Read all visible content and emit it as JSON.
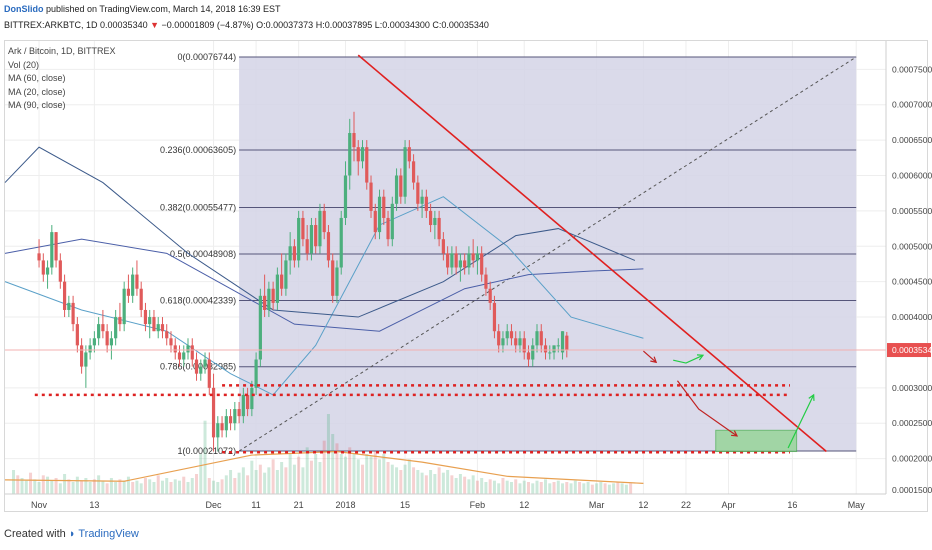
{
  "header": {
    "author": "DonSlido",
    "publish_text": "published on TradingView.com, March 14, 2018 16:39 EST"
  },
  "symbol_line": {
    "symbol": "BITTREX:ARKBTC, 1D",
    "last": "0.00035340",
    "change": "−0.00001809 (−4.87%)",
    "open": "O:0.00037373",
    "high": "H:0.00037895",
    "low": "L:0.00034300",
    "close": "C:0.00035340",
    "accent_down": "#d33333"
  },
  "legend": {
    "title": "Ark / Bitcoin, 1D, BITTREX",
    "items": [
      "Vol (20)",
      "MA (60, close)",
      "MA (20, close)",
      "MA (90, close)"
    ]
  },
  "chart_data": {
    "type": "candlestick",
    "title": "Ark / Bitcoin, 1D, BITTREX",
    "price_ticks": [
      0.00075,
      0.0007,
      0.00065,
      0.0006,
      0.00055,
      0.0005,
      0.00045,
      0.0004,
      0.0003,
      0.00025,
      0.0002
    ],
    "price_tick_labels": [
      "0.00075000",
      "0.00070000",
      "0.00065000",
      "0.00060000",
      "0.00055000",
      "0.00050000",
      "0.00045000",
      "0.00040000",
      "0.00030000",
      "0.00025000",
      "0.00020000"
    ],
    "bottom_tick_label": "0.00015000",
    "ylim": [
      0.00015,
      0.00079
    ],
    "last_price": 0.0003534,
    "last_price_label": "0.00035340",
    "x_tick_labels": [
      "Nov",
      "13",
      "Dec",
      "11",
      "21",
      "2018",
      "15",
      "Feb",
      "12",
      "Mar",
      "12",
      "22",
      "Apr",
      "16",
      "May"
    ],
    "x_tick_days": [
      0,
      13,
      41,
      51,
      61,
      72,
      86,
      103,
      114,
      131,
      142,
      152,
      162,
      177,
      192
    ],
    "x_range_days": [
      -8,
      199
    ],
    "fib_levels": [
      {
        "label": "0(0.00076744)",
        "value": 0.00076744
      },
      {
        "label": "0.236(0.00063605)",
        "value": 0.00063605
      },
      {
        "label": "0.382(0.00055477)",
        "value": 0.00055477
      },
      {
        "label": "0.5(0.00048908)",
        "value": 0.00048908
      },
      {
        "label": "0.618(0.00042339)",
        "value": 0.00042339
      },
      {
        "label": "0.786(0.00032985)",
        "value": 0.00032985
      },
      {
        "label": "1(0.00021072)",
        "value": 0.00021072
      }
    ],
    "fib_range_days": [
      47,
      192
    ],
    "trendline": {
      "from": [
        75,
        0.00077
      ],
      "to": [
        185,
        0.00021
      ]
    },
    "support_levels": [
      0.00029,
      0.0003035,
      0.00020898
    ],
    "target_box": {
      "days": [
        159,
        178
      ],
      "prices": [
        0.00024,
        0.00021
      ]
    },
    "candles_days_start": 0,
    "candles": [
      [
        0.00049,
        0.00051,
        0.00047,
        0.00048
      ],
      [
        0.00048,
        0.00049,
        0.00045,
        0.00046
      ],
      [
        0.00046,
        0.00048,
        0.00044,
        0.00047
      ],
      [
        0.00047,
        0.00053,
        0.00046,
        0.00052
      ],
      [
        0.00052,
        0.00052,
        0.00047,
        0.00048
      ],
      [
        0.00048,
        0.00049,
        0.00044,
        0.00045
      ],
      [
        0.00045,
        0.00046,
        0.0004,
        0.00041
      ],
      [
        0.00041,
        0.00043,
        0.0004,
        0.00042
      ],
      [
        0.00042,
        0.00043,
        0.00038,
        0.00039
      ],
      [
        0.00039,
        0.0004,
        0.00035,
        0.00036
      ],
      [
        0.00036,
        0.00037,
        0.00032,
        0.00033
      ],
      [
        0.00033,
        0.00036,
        0.0003,
        0.00035
      ],
      [
        0.00035,
        0.00037,
        0.00034,
        0.00036
      ],
      [
        0.00036,
        0.00038,
        0.00035,
        0.00037
      ],
      [
        0.00037,
        0.0004,
        0.00036,
        0.00039
      ],
      [
        0.00039,
        0.00041,
        0.00037,
        0.00038
      ],
      [
        0.00038,
        0.00039,
        0.00035,
        0.00036
      ],
      [
        0.00036,
        0.00038,
        0.00034,
        0.00037
      ],
      [
        0.00037,
        0.00041,
        0.00036,
        0.0004
      ],
      [
        0.0004,
        0.00042,
        0.00038,
        0.00039
      ],
      [
        0.00039,
        0.00045,
        0.00038,
        0.00044
      ],
      [
        0.00044,
        0.00046,
        0.00042,
        0.00043
      ],
      [
        0.00043,
        0.00047,
        0.00042,
        0.00046
      ],
      [
        0.00046,
        0.00048,
        0.00043,
        0.00044
      ],
      [
        0.00044,
        0.00045,
        0.0004,
        0.00041
      ],
      [
        0.00041,
        0.00042,
        0.00038,
        0.00039
      ],
      [
        0.00039,
        0.00041,
        0.00037,
        0.0004
      ],
      [
        0.0004,
        0.00041,
        0.00038,
        0.00038
      ],
      [
        0.00038,
        0.0004,
        0.00037,
        0.00039
      ],
      [
        0.00039,
        0.0004,
        0.00037,
        0.00038
      ],
      [
        0.00038,
        0.00039,
        0.00036,
        0.00037
      ],
      [
        0.00037,
        0.00038,
        0.00035,
        0.00036
      ],
      [
        0.00036,
        0.00037,
        0.00034,
        0.00035
      ],
      [
        0.00035,
        0.00036,
        0.00033,
        0.00034
      ],
      [
        0.00034,
        0.00036,
        0.00033,
        0.00035
      ],
      [
        0.00035,
        0.00037,
        0.00034,
        0.00036
      ],
      [
        0.00036,
        0.00037,
        0.00033,
        0.00034
      ],
      [
        0.00034,
        0.00035,
        0.00031,
        0.00032
      ],
      [
        0.00032,
        0.00034,
        0.00031,
        0.00033
      ],
      [
        0.00033,
        0.00035,
        0.00032,
        0.00034
      ],
      [
        0.00034,
        0.00035,
        0.00029,
        0.0003
      ],
      [
        0.0003,
        0.00032,
        0.00021,
        0.00023
      ],
      [
        0.00023,
        0.00026,
        0.00021,
        0.00025
      ],
      [
        0.00025,
        0.00026,
        0.00023,
        0.00024
      ],
      [
        0.00024,
        0.00027,
        0.00023,
        0.00026
      ],
      [
        0.00026,
        0.00027,
        0.00024,
        0.00025
      ],
      [
        0.00025,
        0.00028,
        0.00024,
        0.00027
      ],
      [
        0.00027,
        0.00028,
        0.00025,
        0.00026
      ],
      [
        0.00026,
        0.0003,
        0.00025,
        0.00029
      ],
      [
        0.00029,
        0.0003,
        0.00026,
        0.00027
      ],
      [
        0.00027,
        0.00031,
        0.00026,
        0.0003
      ],
      [
        0.0003,
        0.00035,
        0.00029,
        0.00034
      ],
      [
        0.00034,
        0.00044,
        0.00033,
        0.00043
      ],
      [
        0.00043,
        0.00046,
        0.0004,
        0.00041
      ],
      [
        0.00041,
        0.00045,
        0.0004,
        0.00044
      ],
      [
        0.00044,
        0.00045,
        0.00041,
        0.00042
      ],
      [
        0.00042,
        0.00047,
        0.00041,
        0.00046
      ],
      [
        0.00046,
        0.00049,
        0.00043,
        0.00044
      ],
      [
        0.00044,
        0.00049,
        0.00043,
        0.00048
      ],
      [
        0.00048,
        0.00052,
        0.00046,
        0.0005
      ],
      [
        0.0005,
        0.00051,
        0.00047,
        0.00048
      ],
      [
        0.00048,
        0.00055,
        0.00047,
        0.00054
      ],
      [
        0.00054,
        0.00055,
        0.0005,
        0.00051
      ],
      [
        0.00051,
        0.00053,
        0.00048,
        0.00049
      ],
      [
        0.00049,
        0.00054,
        0.00048,
        0.00053
      ],
      [
        0.00053,
        0.00054,
        0.00049,
        0.0005
      ],
      [
        0.0005,
        0.00056,
        0.00049,
        0.00055
      ],
      [
        0.00055,
        0.00056,
        0.00051,
        0.00052
      ],
      [
        0.00052,
        0.00053,
        0.00047,
        0.00048
      ],
      [
        0.00048,
        0.00049,
        0.00042,
        0.00043
      ],
      [
        0.00043,
        0.00048,
        0.00042,
        0.00047
      ],
      [
        0.00047,
        0.00055,
        0.00046,
        0.00054
      ],
      [
        0.00054,
        0.00062,
        0.00053,
        0.0006
      ],
      [
        0.0006,
        0.00068,
        0.00058,
        0.00066
      ],
      [
        0.00066,
        0.00069,
        0.00062,
        0.00064
      ],
      [
        0.00064,
        0.00065,
        0.0006,
        0.00062
      ],
      [
        0.00062,
        0.00065,
        0.00061,
        0.00064
      ],
      [
        0.00064,
        0.00065,
        0.00058,
        0.00059
      ],
      [
        0.00059,
        0.0006,
        0.00054,
        0.00055
      ],
      [
        0.00055,
        0.00056,
        0.00051,
        0.00052
      ],
      [
        0.00052,
        0.00058,
        0.00051,
        0.00057
      ],
      [
        0.00057,
        0.00058,
        0.00053,
        0.00054
      ],
      [
        0.00054,
        0.00055,
        0.0005,
        0.00051
      ],
      [
        0.00051,
        0.00057,
        0.0005,
        0.00056
      ],
      [
        0.00056,
        0.00061,
        0.00055,
        0.0006
      ],
      [
        0.0006,
        0.00061,
        0.00056,
        0.00057
      ],
      [
        0.00057,
        0.00065,
        0.00056,
        0.00064
      ],
      [
        0.00064,
        0.00065,
        0.00061,
        0.00062
      ],
      [
        0.00062,
        0.00063,
        0.00058,
        0.00059
      ],
      [
        0.00059,
        0.0006,
        0.00055,
        0.00056
      ],
      [
        0.00056,
        0.00058,
        0.00054,
        0.00057
      ],
      [
        0.00057,
        0.00058,
        0.00054,
        0.00055
      ],
      [
        0.00055,
        0.00056,
        0.00052,
        0.00053
      ],
      [
        0.00053,
        0.00055,
        0.00051,
        0.00054
      ],
      [
        0.00054,
        0.00055,
        0.0005,
        0.00051
      ],
      [
        0.00051,
        0.00052,
        0.00048,
        0.00049
      ],
      [
        0.00049,
        0.0005,
        0.00046,
        0.00047
      ],
      [
        0.00047,
        0.0005,
        0.00046,
        0.00049
      ],
      [
        0.00049,
        0.0005,
        0.00046,
        0.00047
      ],
      [
        0.00047,
        0.00049,
        0.00045,
        0.00048
      ],
      [
        0.00048,
        0.00049,
        0.00046,
        0.00047
      ],
      [
        0.00047,
        0.0005,
        0.00046,
        0.00049
      ],
      [
        0.00049,
        0.00051,
        0.00047,
        0.00048
      ],
      [
        0.00048,
        0.0005,
        0.00046,
        0.00049
      ],
      [
        0.00049,
        0.0005,
        0.00045,
        0.00046
      ],
      [
        0.00046,
        0.00047,
        0.00043,
        0.00044
      ],
      [
        0.00044,
        0.00045,
        0.00041,
        0.00042
      ],
      [
        0.00042,
        0.00043,
        0.00037,
        0.00038
      ],
      [
        0.00038,
        0.00039,
        0.00035,
        0.00036
      ],
      [
        0.00036,
        0.00038,
        0.00035,
        0.00037
      ],
      [
        0.00037,
        0.00039,
        0.00036,
        0.00038
      ],
      [
        0.00038,
        0.00039,
        0.00036,
        0.00037
      ],
      [
        0.00037,
        0.00038,
        0.00035,
        0.00036
      ],
      [
        0.00036,
        0.00038,
        0.00035,
        0.00037
      ],
      [
        0.00037,
        0.00038,
        0.00034,
        0.00035
      ],
      [
        0.00035,
        0.00036,
        0.00033,
        0.00034
      ],
      [
        0.00034,
        0.00037,
        0.00033,
        0.00036
      ],
      [
        0.00036,
        0.00039,
        0.00035,
        0.00038
      ],
      [
        0.00038,
        0.00039,
        0.00035,
        0.00036
      ],
      [
        0.00036,
        0.00037,
        0.00034,
        0.00035
      ],
      [
        0.00035,
        0.00036,
        0.00034,
        0.00035
      ],
      [
        0.00035,
        0.00036,
        0.00034,
        0.00036
      ],
      [
        0.00036,
        0.00037,
        0.00035,
        0.00036
      ],
      [
        0.00035,
        0.00038,
        0.00034,
        0.00038
      ],
      [
        0.00037373,
        0.00037895,
        0.000343,
        0.0003534
      ]
    ],
    "volume_days_start": -6,
    "volume": [
      18,
      14,
      12,
      10,
      16,
      11,
      9,
      14,
      13,
      10,
      12,
      8,
      15,
      11,
      9,
      13,
      10,
      12,
      9,
      11,
      14,
      10,
      8,
      12,
      9,
      11,
      10,
      13,
      9,
      10,
      8,
      12,
      11,
      9,
      14,
      10,
      12,
      9,
      11,
      10,
      13,
      9,
      12,
      15,
      30,
      55,
      12,
      10,
      9,
      11,
      14,
      18,
      12,
      16,
      20,
      14,
      25,
      18,
      22,
      16,
      20,
      26,
      18,
      24,
      20,
      30,
      22,
      28,
      20,
      35,
      25,
      30,
      24,
      40,
      60,
      45,
      38,
      30,
      28,
      35,
      30,
      26,
      22,
      30,
      28,
      32,
      26,
      30,
      24,
      22,
      20,
      18,
      22,
      26,
      20,
      18,
      16,
      14,
      18,
      15,
      20,
      16,
      18,
      14,
      12,
      15,
      13,
      11,
      14,
      10,
      12,
      9,
      11,
      10,
      8,
      12,
      10,
      9,
      11,
      8,
      10,
      9,
      8,
      10,
      9,
      11,
      8,
      9,
      10,
      8,
      9,
      8,
      10,
      9,
      8,
      9,
      7,
      8,
      9,
      8,
      7,
      8,
      9,
      8,
      7,
      8
    ],
    "ma_lines": [
      {
        "name": "MA (60, close)",
        "color": "#4b5fa8",
        "points": [
          [
            -8,
            0.00049
          ],
          [
            10,
            0.00051
          ],
          [
            30,
            0.00049
          ],
          [
            45,
            0.00044
          ],
          [
            60,
            0.00039
          ],
          [
            80,
            0.00038
          ],
          [
            100,
            0.00044
          ],
          [
            115,
            0.00046
          ],
          [
            130,
            0.000465
          ],
          [
            142,
            0.000468
          ]
        ]
      },
      {
        "name": "MA (20, close)",
        "color": "#5aa0c8",
        "points": [
          [
            -8,
            0.00045
          ],
          [
            10,
            0.00041
          ],
          [
            30,
            0.00038
          ],
          [
            45,
            0.00032
          ],
          [
            55,
            0.00029
          ],
          [
            65,
            0.00036
          ],
          [
            80,
            0.00053
          ],
          [
            95,
            0.00057
          ],
          [
            110,
            0.0005
          ],
          [
            125,
            0.0004
          ],
          [
            142,
            0.00037
          ]
        ]
      },
      {
        "name": "MA (90, close)",
        "color": "#3c5a8a",
        "points": [
          [
            -8,
            0.00059
          ],
          [
            0,
            0.00064
          ],
          [
            15,
            0.00059
          ],
          [
            35,
            0.00049
          ],
          [
            55,
            0.00041
          ],
          [
            75,
            0.0004
          ],
          [
            95,
            0.00045
          ],
          [
            112,
            0.000515
          ],
          [
            122,
            0.000525
          ],
          [
            140,
            0.00048
          ]
        ]
      }
    ],
    "volume_ma": {
      "color": "#e8a050",
      "points": [
        [
          -8,
          0.00017
        ],
        [
          20,
          0.000168
        ],
        [
          50,
          0.000205
        ],
        [
          70,
          0.00021
        ],
        [
          90,
          0.000195
        ],
        [
          110,
          0.000175
        ],
        [
          142,
          0.000165
        ]
      ]
    },
    "colors": {
      "up": "#4caf7d",
      "down": "#e05a5a",
      "fib_fill": "#d4d4e6",
      "fib_line": "#55557a",
      "trendline": "#e02020",
      "support": "#dd2222",
      "last_price_badge": "#e85050",
      "target_box": "#8fd48f",
      "projection_green": "#22cc44",
      "projection_red": "#c02222"
    },
    "grid": true,
    "legend_position": "top-left"
  },
  "footer": {
    "created_with": "Created with",
    "brand": "TradingView"
  }
}
